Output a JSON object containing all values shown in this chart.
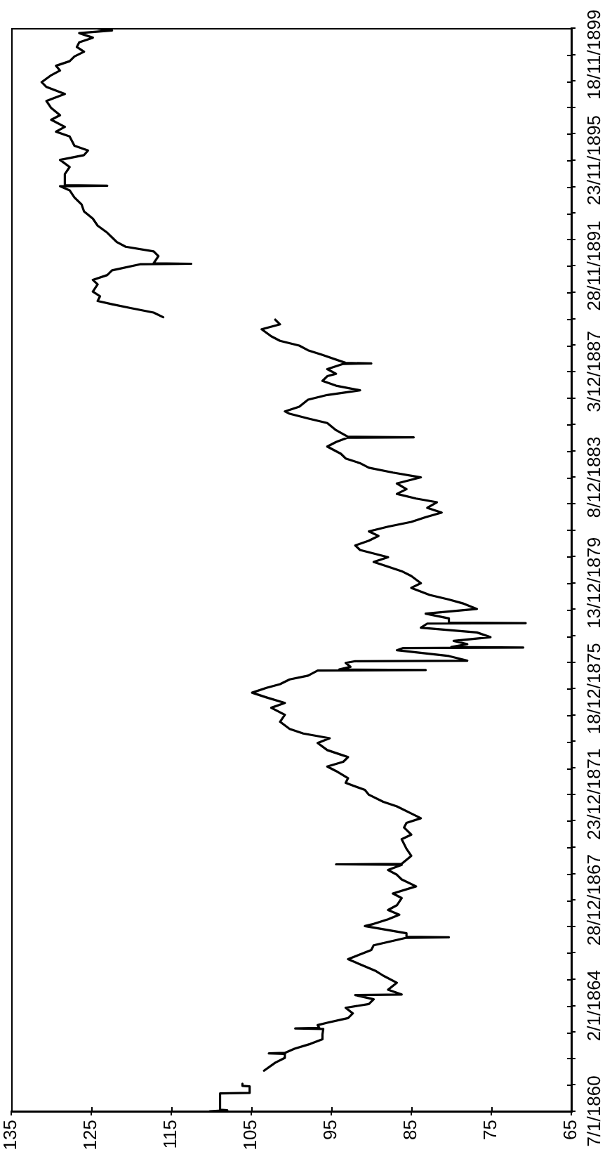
{
  "chart_data": {
    "type": "line",
    "orientation": "horizontal",
    "x": [
      "1860-01-07",
      "1860-01-21",
      "1860-01-28",
      "1860-09-08",
      "1860-09-15",
      "1860-12-15",
      "1860-12-22",
      "1861-01-19",
      "1861-04-01",
      "1861-07-19",
      "1861-11-06",
      "1862-01-12",
      "1862-03-07",
      "1862-03-14",
      "1862-03-21",
      "1862-05-17",
      "1862-07-23",
      "1862-09-24",
      "1862-11-28",
      "1863-02-14",
      "1863-02-21",
      "1863-02-28",
      "1863-04-08",
      "1863-05-11",
      "1863-07-13",
      "1863-09-16",
      "1863-12-02",
      "1864-01-23",
      "1864-03-28",
      "1864-05-26",
      "1864-06-02",
      "1864-08-07",
      "1864-11-11",
      "1865-02-17",
      "1865-04-20",
      "1865-06-26",
      "1865-10-02",
      "1865-12-06",
      "1866-02-06",
      "1866-04-12",
      "1866-07-24",
      "1866-07-31",
      "1866-08-07",
      "1866-09-24",
      "1867-01-01",
      "1867-01-31",
      "1867-04-05",
      "1867-06-07",
      "1867-08-11",
      "1867-10-15",
      "1868-01-22",
      "1868-03-25",
      "1868-07-01",
      "1868-10-05",
      "1868-12-09",
      "1869-02-12",
      "1869-04-24",
      "1869-05-01",
      "1869-05-08",
      "1869-08-26",
      "1869-12-01",
      "1870-04-12",
      "1870-06-14",
      "1870-09-20",
      "1870-11-22",
      "1871-01-26",
      "1871-04-01",
      "1871-07-08",
      "1871-09-09",
      "1871-12-16",
      "1872-02-20",
      "1872-05-27",
      "1872-07-31",
      "1872-11-06",
      "1873-01-08",
      "1873-03-14",
      "1873-05-18",
      "1873-06-20",
      "1873-08-22",
      "1873-11-28",
      "1874-02-01",
      "1874-04-08",
      "1874-06-10",
      "1874-09-16",
      "1874-12-21",
      "1875-03-28",
      "1875-06-02",
      "1875-08-18",
      "1875-10-22",
      "1875-12-27",
      "1876-02-17",
      "1876-04-22",
      "1876-06-13",
      "1876-08-22",
      "1876-08-29",
      "1876-09-05",
      "1876-10-12",
      "1876-12-05",
      "1876-12-29",
      "1877-01-05",
      "1877-03-10",
      "1877-05-29",
      "1877-06-28",
      "1877-07-05",
      "1877-07-12",
      "1877-08-21",
      "1877-10-05",
      "1877-11-25",
      "1878-01-29",
      "1878-04-05",
      "1878-05-31",
      "1878-06-07",
      "1878-06-14",
      "1878-08-11",
      "1878-10-15",
      "1878-12-19",
      "1879-03-07",
      "1879-04-27",
      "1879-06-30",
      "1879-10-05",
      "1879-12-09",
      "1880-03-17",
      "1880-05-22",
      "1880-07-24",
      "1880-09-27",
      "1880-12-01",
      "1881-03-10",
      "1881-05-12",
      "1881-07-16",
      "1881-09-20",
      "1881-11-22",
      "1882-01-26",
      "1882-04-01",
      "1882-06-06",
      "1882-08-08",
      "1882-10-12",
      "1882-12-28",
      "1883-02-17",
      "1883-04-22",
      "1883-06-27",
      "1883-09-13",
      "1883-12-06",
      "1884-02-10",
      "1884-04-16",
      "1884-06-18",
      "1884-08-22",
      "1884-10-26",
      "1885-02-02",
      "1885-04-06",
      "1885-06-03",
      "1885-06-10",
      "1885-06-17",
      "1885-09-16",
      "1885-12-24",
      "1886-02-24",
      "1886-04-30",
      "1886-06-02",
      "1886-08-05",
      "1886-11-10",
      "1887-01-14",
      "1887-03-20",
      "1887-05-22",
      "1887-07-27",
      "1887-09-30",
      "1887-11-02",
      "1888-01-05",
      "1888-03-17",
      "1888-03-24",
      "1888-03-31",
      "1888-07-19",
      "1888-09-21",
      "1888-11-24",
      "1889-01-29",
      "1889-04-02",
      "1889-07-08",
      "1889-09-13",
      "1889-11-17",
      "1889-12-01",
      "1889-12-20",
      "1890-02-22",
      "1890-04-26",
      "1890-06-17",
      "1890-08-01",
      "1890-10-05",
      "1890-12-09",
      "1891-03-17",
      "1891-05-19",
      "1891-07-24",
      "1891-09-27",
      "1891-12-20",
      "1891-12-27",
      "1892-01-03",
      "1892-04-10",
      "1892-06-14",
      "1892-08-18",
      "1892-10-20",
      "1892-12-24",
      "1893-02-27",
      "1893-06-04",
      "1893-09-09",
      "1893-12-16",
      "1894-03-22",
      "1894-06-28",
      "1894-10-04",
      "1894-11-29",
      "1894-12-06",
      "1894-12-13",
      "1895-02-09",
      "1895-05-16",
      "1895-08-21",
      "1895-11-27",
      "1896-02-01",
      "1896-04-05",
      "1896-06-09",
      "1896-10-16",
      "1896-12-20",
      "1897-02-24",
      "1897-06-02",
      "1897-08-04",
      "1897-11-10",
      "1898-02-16",
      "1898-05-23",
      "1898-08-28",
      "1898-11-02",
      "1899-02-06",
      "1899-04-11",
      "1899-06-16",
      "1899-08-18",
      "1899-10-22",
      "1899-12-27",
      "1900-03-01",
      "1900-05-04",
      "1900-07-08",
      "1900-09-09",
      "1900-10-15",
      "1900-11-10"
    ],
    "values": [
      110.2,
      108.0,
      108.9,
      108.9,
      105.2,
      105.2,
      106.1,
      106.1,
      null,
      103.4,
      102.0,
      100.8,
      100.8,
      102.8,
      100.8,
      99.6,
      97.6,
      96.1,
      96.1,
      96.0,
      99.5,
      96.5,
      96.7,
      95.5,
      92.9,
      92.3,
      93.2,
      90.3,
      89.7,
      92.0,
      86.2,
      87.9,
      86.8,
      88.5,
      89.4,
      90.8,
      92.9,
      91.4,
      90.0,
      89.7,
      85.6,
      80.3,
      85.6,
      85.6,
      90.8,
      89.7,
      87.9,
      86.5,
      87.9,
      86.8,
      86.2,
      87.3,
      84.4,
      86.2,
      86.8,
      87.9,
      86.2,
      94.4,
      86.2,
      85.0,
      85.6,
      86.2,
      85.0,
      85.9,
      85.6,
      83.8,
      85.0,
      86.8,
      88.5,
      90.3,
      90.8,
      93.2,
      92.9,
      94.4,
      95.5,
      93.5,
      92.9,
      93.8,
      95.5,
      96.7,
      95.2,
      98.5,
      100.2,
      101.4,
      100.8,
      102.5,
      100.8,
      103.1,
      104.9,
      103.1,
      101.4,
      100.2,
      97.9,
      96.7,
      83.2,
      94.0,
      92.6,
      93.2,
      92.0,
      78.0,
      80.3,
      86.8,
      86.0,
      71.0,
      80.0,
      78.0,
      79.7,
      75.1,
      76.8,
      83.8,
      83.0,
      70.7,
      80.3,
      80.3,
      83.2,
      76.8,
      78.6,
      80.3,
      82.7,
      85.0,
      83.8,
      85.0,
      86.2,
      87.9,
      89.7,
      87.9,
      91.4,
      92.0,
      90.3,
      89.1,
      90.3,
      87.9,
      85.0,
      83.2,
      81.2,
      83.0,
      81.8,
      84.4,
      86.8,
      85.6,
      86.8,
      83.8,
      87.3,
      90.3,
      91.4,
      93.2,
      93.8,
      95.5,
      94.4,
      93.0,
      84.7,
      92.9,
      94.4,
      95.5,
      97.9,
      100.2,
      100.8,
      99.0,
      97.9,
      95.5,
      91.4,
      94.4,
      96.1,
      95.5,
      94.4,
      95.5,
      93.5,
      90.0,
      93.2,
      96.1,
      97.9,
      99.0,
      101.4,
      102.5,
      103.7,
      101.4,
      102.0,
      null,
      116.0,
      117.2,
      120.1,
      122.4,
      124.2,
      123.9,
      124.8,
      124.2,
      124.8,
      123.0,
      122.4,
      118.9,
      112.5,
      117.2,
      116.6,
      117.2,
      120.7,
      121.8,
      122.4,
      123.0,
      124.2,
      124.8,
      125.9,
      126.2,
      127.1,
      127.7,
      128.9,
      123.0,
      128.3,
      128.3,
      128.3,
      127.7,
      128.9,
      125.9,
      125.4,
      127.1,
      127.7,
      129.4,
      128.3,
      130.0,
      128.9,
      130.0,
      130.6,
      128.3,
      130.6,
      131.2,
      130.0,
      128.9,
      129.4,
      127.7,
      127.1,
      125.9,
      126.8,
      126.5,
      124.8,
      126.5,
      122.4,
      124.2
    ],
    "color": "#000000",
    "xlim": [
      135,
      65
    ],
    "xticks": [
      135,
      125,
      115,
      105,
      95,
      85,
      75,
      65
    ],
    "ylim": [
      "1860-01-07",
      "1900-11-17"
    ],
    "yticks": [
      {
        "value": "1860-01-07",
        "label": "7/1/1860"
      },
      {
        "value": "1861-01-05",
        "label": null
      },
      {
        "value": "1862-01-04",
        "label": null
      },
      {
        "value": "1863-01-03",
        "label": null
      },
      {
        "value": "1864-01-02",
        "label": "2/1/1864"
      },
      {
        "value": "1864-12-31",
        "label": null
      },
      {
        "value": "1865-12-30",
        "label": null
      },
      {
        "value": "1866-12-29",
        "label": null
      },
      {
        "value": "1867-12-28",
        "label": "28/12/1867"
      },
      {
        "value": "1868-12-26",
        "label": null
      },
      {
        "value": "1869-12-25",
        "label": null
      },
      {
        "value": "1870-12-24",
        "label": null
      },
      {
        "value": "1871-12-23",
        "label": "23/12/1871"
      },
      {
        "value": "1872-12-21",
        "label": null
      },
      {
        "value": "1873-12-20",
        "label": null
      },
      {
        "value": "1874-12-19",
        "label": null
      },
      {
        "value": "1875-12-18",
        "label": "18/12/1875"
      },
      {
        "value": "1876-12-16",
        "label": null
      },
      {
        "value": "1877-12-15",
        "label": null
      },
      {
        "value": "1878-12-14",
        "label": null
      },
      {
        "value": "1879-12-13",
        "label": "13/12/1879"
      },
      {
        "value": "1880-12-11",
        "label": null
      },
      {
        "value": "1881-12-10",
        "label": null
      },
      {
        "value": "1882-12-09",
        "label": null
      },
      {
        "value": "1883-12-08",
        "label": "8/12/1883"
      },
      {
        "value": "1884-12-06",
        "label": null
      },
      {
        "value": "1885-12-05",
        "label": null
      },
      {
        "value": "1886-12-04",
        "label": null
      },
      {
        "value": "1887-12-03",
        "label": "3/12/1887"
      },
      {
        "value": "1888-12-01",
        "label": null
      },
      {
        "value": "1889-11-30",
        "label": null
      },
      {
        "value": "1890-11-29",
        "label": null
      },
      {
        "value": "1891-11-28",
        "label": "28/11/1891"
      },
      {
        "value": "1892-11-26",
        "label": null
      },
      {
        "value": "1893-11-25",
        "label": null
      },
      {
        "value": "1894-11-24",
        "label": null
      },
      {
        "value": "1895-11-23",
        "label": "23/11/1895"
      },
      {
        "value": "1896-11-21",
        "label": null
      },
      {
        "value": "1897-11-20",
        "label": null
      },
      {
        "value": "1898-11-19",
        "label": null
      },
      {
        "value": "1899-11-18",
        "label": "18/11/1899"
      },
      {
        "value": "1900-11-17",
        "label": null
      }
    ]
  }
}
